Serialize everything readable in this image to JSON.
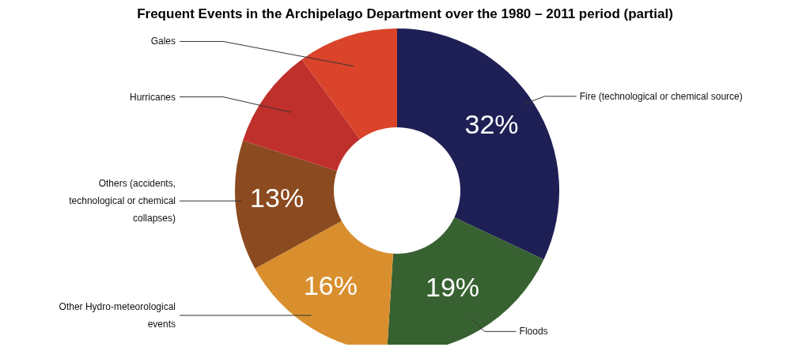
{
  "chart_data": {
    "type": "donut",
    "title": "Frequent Events in the Archipelago Department over the 1980 – 2011 period (partial)",
    "categories": [
      "Fire (technological or chemical source)",
      "Floods",
      "Other Hydro-meteorological events",
      "Others (accidents, technological or chemical collapses)",
      "Hurricanes",
      "Gales"
    ],
    "values": [
      32,
      19,
      16,
      13,
      10,
      10
    ],
    "colors": [
      "#1e1f55",
      "#386131",
      "#d98f2e",
      "#8b4a1f",
      "#bf2f2c",
      "#d9442a"
    ],
    "value_labels": [
      "32%",
      "19%",
      "16%",
      "13%",
      null,
      null
    ],
    "legend": false
  }
}
